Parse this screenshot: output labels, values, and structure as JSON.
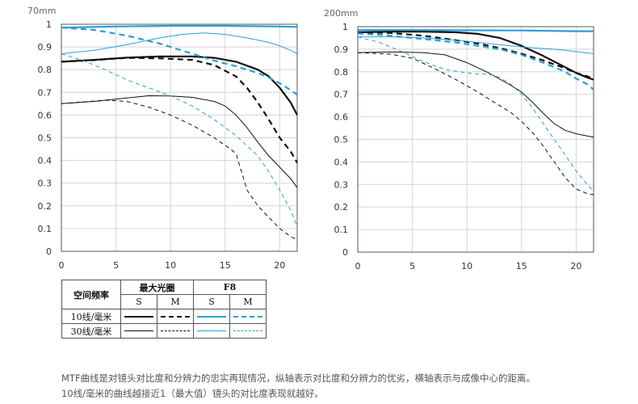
{
  "chart_data": [
    {
      "type": "line",
      "title": "70mm",
      "xlim": [
        0,
        21.6
      ],
      "ylim": [
        0,
        1
      ],
      "xticks": [
        0,
        5,
        10,
        15,
        20
      ],
      "yticks": [
        0,
        0.1,
        0.2,
        0.3,
        0.4,
        0.5,
        0.6,
        0.7,
        0.8,
        0.9,
        1
      ],
      "ytick_labels": [
        "0",
        "0.1",
        "0.2",
        "0.3",
        "0.4",
        "0.5",
        "0.6",
        "0.7",
        "0.8",
        "0.9",
        "1"
      ],
      "grid": true,
      "series": [
        {
          "group": "max-aperture",
          "freq": "10",
          "orientation": "S",
          "points": [
            [
              0,
              0.835
            ],
            [
              3,
              0.843
            ],
            [
              6,
              0.853
            ],
            [
              9,
              0.858
            ],
            [
              12,
              0.858
            ],
            [
              14,
              0.852
            ],
            [
              16,
              0.835
            ],
            [
              18,
              0.8
            ],
            [
              19,
              0.77
            ],
            [
              20,
              0.72
            ],
            [
              21,
              0.655
            ],
            [
              21.6,
              0.6
            ]
          ]
        },
        {
          "group": "max-aperture",
          "freq": "10",
          "orientation": "M",
          "points": [
            [
              0,
              0.835
            ],
            [
              3,
              0.842
            ],
            [
              6,
              0.852
            ],
            [
              9,
              0.85
            ],
            [
              12,
              0.843
            ],
            [
              14,
              0.82
            ],
            [
              16,
              0.77
            ],
            [
              17,
              0.72
            ],
            [
              18,
              0.655
            ],
            [
              19,
              0.58
            ],
            [
              20,
              0.5
            ],
            [
              21,
              0.44
            ],
            [
              21.6,
              0.39
            ]
          ]
        },
        {
          "group": "max-aperture",
          "freq": "30",
          "orientation": "S",
          "points": [
            [
              0,
              0.65
            ],
            [
              3,
              0.66
            ],
            [
              6,
              0.675
            ],
            [
              8,
              0.685
            ],
            [
              10,
              0.684
            ],
            [
              12,
              0.678
            ],
            [
              14,
              0.66
            ],
            [
              15,
              0.64
            ],
            [
              16,
              0.6
            ],
            [
              17,
              0.545
            ],
            [
              18,
              0.48
            ],
            [
              19,
              0.42
            ],
            [
              20,
              0.37
            ],
            [
              21,
              0.32
            ],
            [
              21.6,
              0.28
            ]
          ]
        },
        {
          "group": "max-aperture",
          "freq": "30",
          "orientation": "M",
          "points": [
            [
              0,
              0.65
            ],
            [
              2,
              0.658
            ],
            [
              4,
              0.665
            ],
            [
              6,
              0.66
            ],
            [
              8,
              0.635
            ],
            [
              10,
              0.6
            ],
            [
              12,
              0.555
            ],
            [
              14,
              0.5
            ],
            [
              15.5,
              0.45
            ],
            [
              16,
              0.43
            ],
            [
              16.5,
              0.35
            ],
            [
              17,
              0.27
            ],
            [
              18,
              0.2
            ],
            [
              19,
              0.15
            ],
            [
              20,
              0.1
            ],
            [
              21,
              0.065
            ],
            [
              21.6,
              0.05
            ]
          ]
        },
        {
          "group": "f8",
          "freq": "10",
          "orientation": "S",
          "points": [
            [
              0,
              0.985
            ],
            [
              5,
              0.99
            ],
            [
              10,
              0.993
            ],
            [
              15,
              0.993
            ],
            [
              20,
              0.99
            ],
            [
              21.6,
              0.988
            ]
          ]
        },
        {
          "group": "f8",
          "freq": "10",
          "orientation": "M",
          "points": [
            [
              0,
              0.985
            ],
            [
              3,
              0.975
            ],
            [
              6,
              0.95
            ],
            [
              9,
              0.915
            ],
            [
              12,
              0.87
            ],
            [
              14,
              0.84
            ],
            [
              16,
              0.815
            ],
            [
              18,
              0.785
            ],
            [
              19,
              0.765
            ],
            [
              20,
              0.74
            ],
            [
              21,
              0.71
            ],
            [
              21.6,
              0.69
            ]
          ]
        },
        {
          "group": "f8",
          "freq": "30",
          "orientation": "S",
          "points": [
            [
              0,
              0.87
            ],
            [
              3,
              0.885
            ],
            [
              6,
              0.91
            ],
            [
              9,
              0.94
            ],
            [
              11,
              0.955
            ],
            [
              13,
              0.962
            ],
            [
              15,
              0.955
            ],
            [
              17,
              0.94
            ],
            [
              19,
              0.92
            ],
            [
              20,
              0.905
            ],
            [
              21,
              0.885
            ],
            [
              21.6,
              0.87
            ]
          ]
        },
        {
          "group": "f8",
          "freq": "30",
          "orientation": "M",
          "points": [
            [
              0,
              0.87
            ],
            [
              2,
              0.84
            ],
            [
              4,
              0.8
            ],
            [
              6,
              0.755
            ],
            [
              8,
              0.72
            ],
            [
              10,
              0.685
            ],
            [
              12,
              0.64
            ],
            [
              14,
              0.58
            ],
            [
              16,
              0.51
            ],
            [
              18,
              0.42
            ],
            [
              19,
              0.35
            ],
            [
              20,
              0.27
            ],
            [
              21,
              0.18
            ],
            [
              21.6,
              0.11
            ]
          ]
        }
      ]
    },
    {
      "type": "line",
      "title": "200mm",
      "xlim": [
        0,
        21.6
      ],
      "ylim": [
        0,
        1
      ],
      "xticks": [
        0,
        5,
        10,
        15,
        20
      ],
      "yticks": [
        0,
        0.1,
        0.2,
        0.3,
        0.4,
        0.5,
        0.6,
        0.7,
        0.8,
        0.9,
        1
      ],
      "ytick_labels": [
        "0",
        "0.1",
        "0.2",
        "0.3",
        "0.4",
        "0.5",
        "0.6",
        "0.7",
        "0.8",
        "0.9",
        "1"
      ],
      "grid": true,
      "series": [
        {
          "group": "max-aperture",
          "freq": "10",
          "orientation": "S",
          "points": [
            [
              0,
              0.975
            ],
            [
              3,
              0.978
            ],
            [
              6,
              0.978
            ],
            [
              9,
              0.975
            ],
            [
              11,
              0.968
            ],
            [
              13,
              0.95
            ],
            [
              15,
              0.915
            ],
            [
              17,
              0.87
            ],
            [
              19,
              0.82
            ],
            [
              20,
              0.795
            ],
            [
              21,
              0.775
            ],
            [
              21.6,
              0.765
            ]
          ]
        },
        {
          "group": "max-aperture",
          "freq": "10",
          "orientation": "M",
          "points": [
            [
              0,
              0.975
            ],
            [
              3,
              0.972
            ],
            [
              6,
              0.96
            ],
            [
              9,
              0.94
            ],
            [
              11,
              0.925
            ],
            [
              13,
              0.905
            ],
            [
              15,
              0.88
            ],
            [
              17,
              0.85
            ],
            [
              19,
              0.815
            ],
            [
              20,
              0.795
            ],
            [
              21,
              0.78
            ],
            [
              21.6,
              0.77
            ]
          ]
        },
        {
          "group": "max-aperture",
          "freq": "30",
          "orientation": "S",
          "points": [
            [
              0,
              0.885
            ],
            [
              3,
              0.888
            ],
            [
              6,
              0.885
            ],
            [
              8,
              0.875
            ],
            [
              10,
              0.84
            ],
            [
              12,
              0.795
            ],
            [
              14,
              0.74
            ],
            [
              15,
              0.71
            ],
            [
              16,
              0.665
            ],
            [
              17,
              0.615
            ],
            [
              18,
              0.57
            ],
            [
              19,
              0.54
            ],
            [
              20,
              0.525
            ],
            [
              21,
              0.515
            ],
            [
              21.6,
              0.51
            ]
          ]
        },
        {
          "group": "max-aperture",
          "freq": "30",
          "orientation": "M",
          "points": [
            [
              0,
              0.885
            ],
            [
              3,
              0.878
            ],
            [
              5,
              0.86
            ],
            [
              7,
              0.815
            ],
            [
              9,
              0.765
            ],
            [
              11,
              0.71
            ],
            [
              13,
              0.65
            ],
            [
              14,
              0.62
            ],
            [
              15,
              0.58
            ],
            [
              16,
              0.53
            ],
            [
              17,
              0.47
            ],
            [
              18,
              0.4
            ],
            [
              19,
              0.33
            ],
            [
              20,
              0.28
            ],
            [
              21,
              0.26
            ],
            [
              21.6,
              0.255
            ]
          ]
        },
        {
          "group": "f8",
          "freq": "10",
          "orientation": "S",
          "points": [
            [
              0,
              0.985
            ],
            [
              5,
              0.985
            ],
            [
              10,
              0.984
            ],
            [
              15,
              0.983
            ],
            [
              20,
              0.98
            ],
            [
              21.6,
              0.98
            ]
          ]
        },
        {
          "group": "f8",
          "freq": "10",
          "orientation": "M",
          "points": [
            [
              0,
              0.97
            ],
            [
              3,
              0.96
            ],
            [
              6,
              0.945
            ],
            [
              9,
              0.93
            ],
            [
              11,
              0.915
            ],
            [
              13,
              0.9
            ],
            [
              15,
              0.875
            ],
            [
              17,
              0.84
            ],
            [
              19,
              0.8
            ],
            [
              20,
              0.77
            ],
            [
              21,
              0.745
            ],
            [
              21.6,
              0.72
            ]
          ]
        },
        {
          "group": "f8",
          "freq": "30",
          "orientation": "S",
          "points": [
            [
              0,
              0.955
            ],
            [
              3,
              0.955
            ],
            [
              6,
              0.95
            ],
            [
              9,
              0.94
            ],
            [
              12,
              0.925
            ],
            [
              15,
              0.91
            ],
            [
              18,
              0.9
            ],
            [
              20,
              0.89
            ],
            [
              21.6,
              0.88
            ]
          ]
        },
        {
          "group": "f8",
          "freq": "30",
          "orientation": "M",
          "points": [
            [
              0,
              0.955
            ],
            [
              2,
              0.93
            ],
            [
              4,
              0.89
            ],
            [
              6,
              0.845
            ],
            [
              8,
              0.81
            ],
            [
              10,
              0.795
            ],
            [
              11,
              0.79
            ],
            [
              12,
              0.79
            ],
            [
              13,
              0.775
            ],
            [
              14,
              0.745
            ],
            [
              15,
              0.7
            ],
            [
              16,
              0.64
            ],
            [
              17,
              0.57
            ],
            [
              18,
              0.5
            ],
            [
              19,
              0.43
            ],
            [
              20,
              0.36
            ],
            [
              21,
              0.3
            ],
            [
              21.6,
              0.27
            ]
          ]
        }
      ]
    }
  ],
  "styles": {
    "max-aperture": "#111111",
    "f8": "#2a9fd6"
  },
  "legend": {
    "spatial_freq_label": "空间频率",
    "max_aperture_label": "最大光圈",
    "f8_label": "F8",
    "s_label": "S",
    "m_label": "M",
    "row_10": "10线/毫米",
    "row_30": "30线/毫米"
  },
  "caption": {
    "line1": "MTF曲线是对镜头对比度和分辨力的忠实再现情况，纵轴表示对比度和分辨力的优劣，横轴表示与成像中心的距离。",
    "line2": "10线/毫米的曲线越接近1（最大值）镜头的对比度表现就越好。"
  }
}
